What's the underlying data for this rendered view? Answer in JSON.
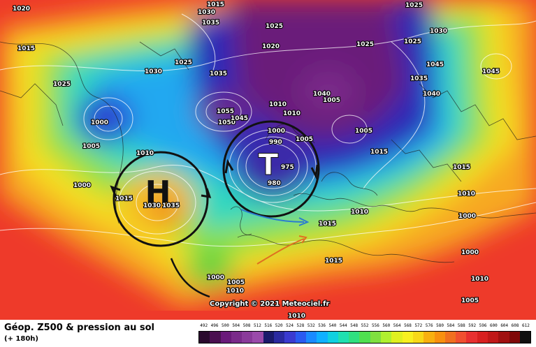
{
  "title": "Géop. Z500 & pression au sol",
  "subtitle": "(+ 180h)",
  "copyright": "Copyright © 2021 Meteociel.fr",
  "systems": {
    "high": {
      "symbol": "H"
    },
    "low": {
      "symbol": "T"
    }
  },
  "pressure_labels": [
    "1020",
    "1015",
    "1010",
    "1000",
    "1000",
    "1015",
    "1030",
    "1025",
    "1025",
    "1020",
    "1025",
    "1025",
    "1030",
    "1045",
    "1040",
    "1045",
    "1035",
    "1025",
    "1005",
    "1000",
    "1035",
    "1050",
    "1055",
    "1045",
    "1010",
    "1010",
    "1005",
    "1040",
    "1005",
    "1000",
    "1005",
    "1015",
    "1015",
    "1030",
    "1035",
    "1010",
    "1010",
    "1015",
    "1000",
    "1015",
    "1000",
    "1005",
    "1010",
    "1015",
    "1010",
    "1005",
    "1010",
    "990",
    "975",
    "980",
    "1025",
    "1030",
    "1035"
  ],
  "scale": {
    "labels": [
      "492",
      "496",
      "500",
      "504",
      "508",
      "512",
      "516",
      "520",
      "524",
      "528",
      "532",
      "536",
      "540",
      "544",
      "548",
      "552",
      "556",
      "560",
      "564",
      "568",
      "572",
      "576",
      "580",
      "584",
      "588",
      "592",
      "596",
      "600",
      "604",
      "608",
      "612"
    ],
    "colors": [
      "#2a0a2e",
      "#4a1050",
      "#6a1a7a",
      "#7a2a8a",
      "#8a3a9a",
      "#9a4aaa",
      "#1a1a6a",
      "#2a2aa0",
      "#3a3ad0",
      "#2a5af0",
      "#1a8aff",
      "#10b0ff",
      "#10d0e0",
      "#20e0b0",
      "#30e080",
      "#50e050",
      "#80e040",
      "#b0f030",
      "#e0f020",
      "#f8f020",
      "#f8d818",
      "#f8b010",
      "#f89010",
      "#f07020",
      "#f05030",
      "#e83030",
      "#d82020",
      "#c01818",
      "#a01010",
      "#800808",
      "#101010"
    ]
  }
}
